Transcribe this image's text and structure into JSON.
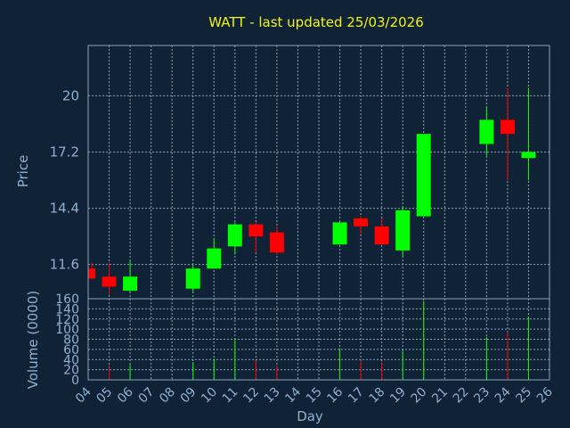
{
  "chart_data": {
    "type": "candlestick",
    "title": "WATT - last updated 25/03/2026",
    "xlabel": "Day",
    "ylabel": "Price",
    "vlabel": "Volume (0000)",
    "x_ticks": [
      "04",
      "05",
      "06",
      "07",
      "08",
      "09",
      "10",
      "11",
      "12",
      "13",
      "14",
      "15",
      "16",
      "17",
      "18",
      "19",
      "20",
      "21",
      "22",
      "23",
      "24",
      "25",
      "26"
    ],
    "y_ticks": [
      "11.6",
      "14.4",
      "17.2",
      "20"
    ],
    "y_tick_values": [
      11.6,
      14.4,
      17.2,
      20
    ],
    "ylim": [
      9.9,
      22.5
    ],
    "volume_ticks": [
      "0",
      "20",
      "40",
      "60",
      "80",
      "100",
      "120",
      "140",
      "160"
    ],
    "volume_tick_values": [
      0,
      20,
      40,
      60,
      80,
      100,
      120,
      140,
      160
    ],
    "volume_ylim": [
      0,
      160
    ],
    "grid": true,
    "colors": {
      "up": "#00ff00",
      "down": "#ff0000",
      "grid": "#8aa4bf",
      "text": "#8fb0cf",
      "title": "#f3f31a",
      "background": "#0f2236"
    },
    "candles": [
      {
        "day": "04",
        "open": 11.4,
        "high": 11.7,
        "low": 10.9,
        "close": 10.9,
        "volume": 0
      },
      {
        "day": "05",
        "open": 11.0,
        "high": 11.7,
        "low": 10.1,
        "close": 10.5,
        "volume": 25
      },
      {
        "day": "06",
        "open": 10.3,
        "high": 11.8,
        "low": 10.2,
        "close": 11.0,
        "volume": 30
      },
      {
        "day": "09",
        "open": 10.4,
        "high": 11.6,
        "low": 10.2,
        "close": 11.4,
        "volume": 35
      },
      {
        "day": "10",
        "open": 11.4,
        "high": 12.9,
        "low": 11.4,
        "close": 12.4,
        "volume": 42
      },
      {
        "day": "11",
        "open": 12.5,
        "high": 13.7,
        "low": 12.1,
        "close": 13.6,
        "volume": 80
      },
      {
        "day": "12",
        "open": 13.6,
        "high": 13.7,
        "low": 12.2,
        "close": 13.0,
        "volume": 38
      },
      {
        "day": "13",
        "open": 13.2,
        "high": 13.5,
        "low": 12.1,
        "close": 12.2,
        "volume": 28
      },
      {
        "day": "16",
        "open": 12.6,
        "high": 13.7,
        "low": 12.6,
        "close": 13.7,
        "volume": 62
      },
      {
        "day": "17",
        "open": 13.9,
        "high": 14.0,
        "low": 13.1,
        "close": 13.5,
        "volume": 38
      },
      {
        "day": "18",
        "open": 13.5,
        "high": 13.9,
        "low": 12.6,
        "close": 12.6,
        "volume": 35
      },
      {
        "day": "19",
        "open": 12.3,
        "high": 14.5,
        "low": 12.0,
        "close": 14.3,
        "volume": 58
      },
      {
        "day": "20",
        "open": 14.0,
        "high": 18.1,
        "low": 14.0,
        "close": 18.1,
        "volume": 155
      },
      {
        "day": "23",
        "open": 17.6,
        "high": 19.4,
        "low": 17.0,
        "close": 18.8,
        "volume": 85
      },
      {
        "day": "24",
        "open": 18.8,
        "high": 20.4,
        "low": 15.8,
        "close": 18.1,
        "volume": 95
      },
      {
        "day": "25",
        "open": 16.9,
        "high": 20.4,
        "low": 15.8,
        "close": 17.2,
        "volume": 125
      }
    ]
  }
}
